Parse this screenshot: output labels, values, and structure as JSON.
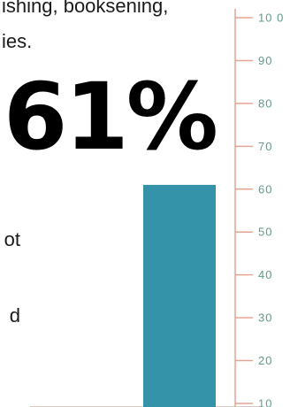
{
  "text_fragments": [
    "ishing, booksening,",
    "ies.",
    "ot",
    "d"
  ],
  "stat_label": "61%",
  "colors": {
    "bar": "#3593a9",
    "axis": "#e8a492",
    "tick_text": "#5e9b8e",
    "baseline": "#d9c9c3"
  },
  "chart_data": {
    "type": "bar",
    "title": "",
    "xlabel": "",
    "ylabel": "",
    "categories": [
      ""
    ],
    "values": [
      61
    ],
    "ylim": [
      10,
      100
    ],
    "y_ticks": [
      "10",
      "20",
      "30",
      "40",
      "50",
      "60",
      "70",
      "80",
      "90",
      "10 0"
    ],
    "grid": false
  }
}
